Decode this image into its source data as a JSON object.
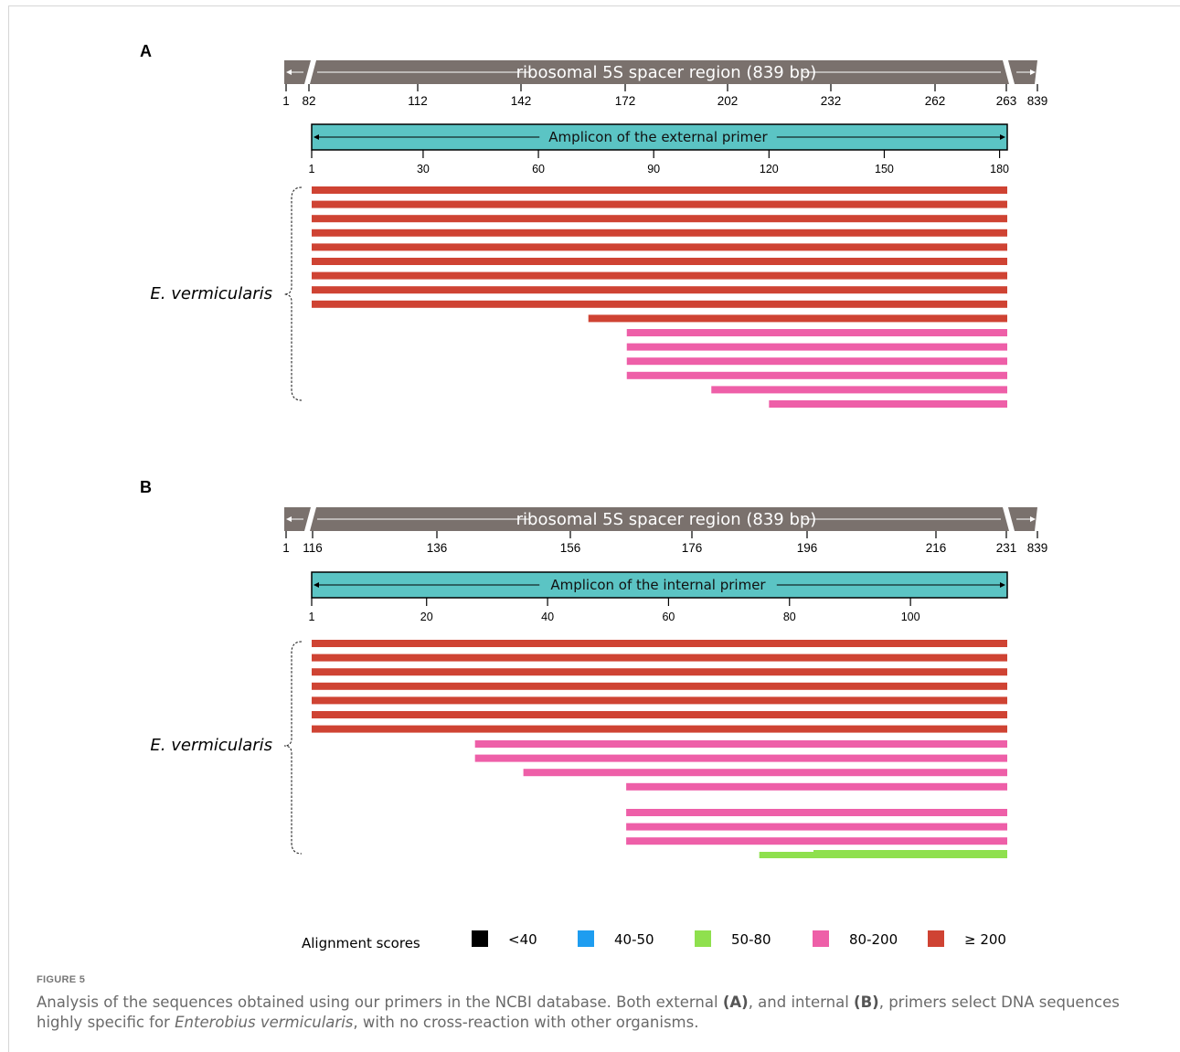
{
  "caption": {
    "label": "FIGURE 5",
    "text_1": "Analysis of the sequences obtained using our primers in the NCBI database. Both external ",
    "ref_a": "(A)",
    "text_2": ", and internal ",
    "ref_b": "(B)",
    "text_3": ", primers select DNA sequences highly specific for ",
    "species": "Enterobius vermicularis",
    "text_4": ", with no cross-reaction with other organisms."
  },
  "colors": {
    "bar_gray": "#7a716d",
    "amplicon": "#5bc4c4",
    "score_lt40": "#000000",
    "score_40_50": "#1e9df0",
    "score_50_80": "#8fe04e",
    "score_80_200": "#ee5fa8",
    "score_ge200": "#cf4333"
  },
  "chart_data": [
    {
      "panel": "A",
      "type": "bar",
      "region": {
        "label": "ribosomal 5S spacer region (839 bp)",
        "ticks": [
          "1",
          "82",
          "112",
          "142",
          "172",
          "202",
          "232",
          "262",
          "263",
          "839"
        ],
        "range": [
          82,
          263
        ],
        "total_length": 839
      },
      "amplicon": {
        "label": "Amplicon of the external primer",
        "ticks": [
          "1",
          "30",
          "60",
          "90",
          "120",
          "150",
          "180"
        ],
        "length": 182
      },
      "group_label": "E. vermicularis",
      "alignments": [
        {
          "start": 1,
          "end": 182,
          "score": ">=200"
        },
        {
          "start": 1,
          "end": 182,
          "score": ">=200"
        },
        {
          "start": 1,
          "end": 182,
          "score": ">=200"
        },
        {
          "start": 1,
          "end": 182,
          "score": ">=200"
        },
        {
          "start": 1,
          "end": 182,
          "score": ">=200"
        },
        {
          "start": 1,
          "end": 182,
          "score": ">=200"
        },
        {
          "start": 1,
          "end": 182,
          "score": ">=200"
        },
        {
          "start": 1,
          "end": 182,
          "score": ">=200"
        },
        {
          "start": 1,
          "end": 182,
          "score": ">=200"
        },
        {
          "start": 73,
          "end": 182,
          "score": ">=200"
        },
        {
          "start": 83,
          "end": 182,
          "score": "80-200"
        },
        {
          "start": 83,
          "end": 182,
          "score": "80-200"
        },
        {
          "start": 83,
          "end": 182,
          "score": "80-200"
        },
        {
          "start": 83,
          "end": 182,
          "score": "80-200"
        },
        {
          "start": 105,
          "end": 182,
          "score": "80-200"
        },
        {
          "start": 120,
          "end": 182,
          "score": "80-200"
        }
      ]
    },
    {
      "panel": "B",
      "type": "bar",
      "region": {
        "label": "ribosomal 5S spacer region (839 bp)",
        "ticks": [
          "1",
          "116",
          "136",
          "156",
          "176",
          "196",
          "216",
          "231",
          "839"
        ],
        "range": [
          116,
          231
        ],
        "total_length": 839
      },
      "amplicon": {
        "label": "Amplicon of the internal primer",
        "ticks": [
          "1",
          "20",
          "40",
          "60",
          "80",
          "100"
        ],
        "length": 116
      },
      "group_label": "E. vermicularis",
      "alignments": [
        {
          "start": 1,
          "end": 116,
          "score": ">=200"
        },
        {
          "start": 1,
          "end": 116,
          "score": ">=200"
        },
        {
          "start": 1,
          "end": 116,
          "score": ">=200"
        },
        {
          "start": 1,
          "end": 116,
          "score": ">=200"
        },
        {
          "start": 1,
          "end": 116,
          "score": ">=200"
        },
        {
          "start": 1,
          "end": 116,
          "score": ">=200"
        },
        {
          "start": 1,
          "end": 116,
          "score": ">=200"
        },
        {
          "start": 28,
          "end": 116,
          "score": "80-200"
        },
        {
          "start": 28,
          "end": 116,
          "score": "80-200"
        },
        {
          "start": 36,
          "end": 116,
          "score": "80-200"
        },
        {
          "start": 53,
          "end": 116,
          "score": "80-200"
        },
        {
          "start": 53,
          "end": 116,
          "score": "80-200"
        },
        {
          "start": 53,
          "end": 116,
          "score": "80-200"
        },
        {
          "start": 53,
          "end": 116,
          "score": "80-200"
        },
        {
          "start": 75,
          "end": 116,
          "score": "50-80"
        }
      ]
    }
  ],
  "legend": {
    "title": "Alignment scores",
    "items": [
      {
        "label": "<40",
        "color": "#000000"
      },
      {
        "label": "40-50",
        "color": "#1e9df0"
      },
      {
        "label": "50-80",
        "color": "#8fe04e"
      },
      {
        "label": "80-200",
        "color": "#ee5fa8"
      },
      {
        "label": "≥ 200",
        "color": "#cf4333"
      }
    ]
  }
}
